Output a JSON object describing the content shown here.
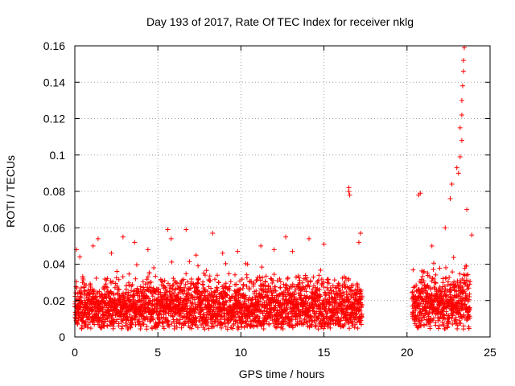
{
  "chart_data": {
    "type": "scatter",
    "title": "Day 193 of 2017, Rate Of TEC Index for receiver nklg",
    "xlabel": "GPS time / hours",
    "ylabel": "ROTI / TECUs",
    "xlim": [
      0,
      25
    ],
    "ylim": [
      0,
      0.16
    ],
    "grid": true,
    "marker": "+",
    "color": "#ff0000",
    "x_ticks": [
      0,
      5,
      10,
      15,
      20,
      25
    ],
    "x_tick_labels": [
      "0",
      "5",
      "10",
      "15",
      "20",
      "25"
    ],
    "y_ticks": [
      0,
      0.02,
      0.04,
      0.06,
      0.08,
      0.1,
      0.12,
      0.14,
      0.16
    ],
    "y_tick_labels": [
      "0",
      "0.02",
      "0.04",
      "0.06",
      "0.08",
      "0.1",
      "0.12",
      "0.14",
      "0.16"
    ],
    "segments": [
      {
        "x_start": 0.0,
        "x_end": 17.3,
        "typical_min": 0.004,
        "typical_max": 0.035
      },
      {
        "x_start": 20.3,
        "x_end": 23.8,
        "typical_min": 0.004,
        "typical_max": 0.04
      }
    ],
    "peaks": [
      {
        "x": 0.1,
        "y": 0.048
      },
      {
        "x": 0.3,
        "y": 0.044
      },
      {
        "x": 1.1,
        "y": 0.05
      },
      {
        "x": 1.4,
        "y": 0.054
      },
      {
        "x": 2.2,
        "y": 0.046
      },
      {
        "x": 2.9,
        "y": 0.055
      },
      {
        "x": 3.6,
        "y": 0.052
      },
      {
        "x": 4.4,
        "y": 0.048
      },
      {
        "x": 5.6,
        "y": 0.059
      },
      {
        "x": 5.8,
        "y": 0.054
      },
      {
        "x": 6.7,
        "y": 0.059
      },
      {
        "x": 7.3,
        "y": 0.045
      },
      {
        "x": 8.3,
        "y": 0.057
      },
      {
        "x": 8.9,
        "y": 0.046
      },
      {
        "x": 9.8,
        "y": 0.047
      },
      {
        "x": 10.4,
        "y": 0.04
      },
      {
        "x": 11.2,
        "y": 0.05
      },
      {
        "x": 12.0,
        "y": 0.048
      },
      {
        "x": 12.7,
        "y": 0.055
      },
      {
        "x": 13.1,
        "y": 0.047
      },
      {
        "x": 14.1,
        "y": 0.054
      },
      {
        "x": 15.0,
        "y": 0.051
      },
      {
        "x": 16.5,
        "y": 0.08
      },
      {
        "x": 16.5,
        "y": 0.082
      },
      {
        "x": 16.55,
        "y": 0.078
      },
      {
        "x": 17.2,
        "y": 0.057
      },
      {
        "x": 17.1,
        "y": 0.052
      },
      {
        "x": 20.8,
        "y": 0.079
      },
      {
        "x": 20.7,
        "y": 0.078
      },
      {
        "x": 21.5,
        "y": 0.05
      },
      {
        "x": 22.3,
        "y": 0.06
      },
      {
        "x": 22.6,
        "y": 0.076
      },
      {
        "x": 22.7,
        "y": 0.084
      },
      {
        "x": 23.0,
        "y": 0.093
      },
      {
        "x": 23.1,
        "y": 0.09
      },
      {
        "x": 23.2,
        "y": 0.099
      },
      {
        "x": 23.2,
        "y": 0.115
      },
      {
        "x": 23.3,
        "y": 0.122
      },
      {
        "x": 23.3,
        "y": 0.13
      },
      {
        "x": 23.35,
        "y": 0.138
      },
      {
        "x": 23.4,
        "y": 0.146
      },
      {
        "x": 23.4,
        "y": 0.152
      },
      {
        "x": 23.45,
        "y": 0.159
      },
      {
        "x": 23.3,
        "y": 0.108
      },
      {
        "x": 23.6,
        "y": 0.07
      },
      {
        "x": 23.9,
        "y": 0.056
      }
    ]
  }
}
